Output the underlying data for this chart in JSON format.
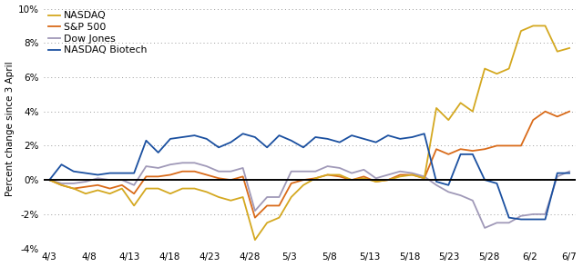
{
  "ylabel": "Percent change since 3 April",
  "ylim": [
    -4,
    10
  ],
  "yticks": [
    -4,
    -2,
    0,
    2,
    4,
    6,
    8,
    10
  ],
  "x_labels": [
    "4/3",
    "4/8",
    "4/13",
    "4/18",
    "4/23",
    "4/28",
    "5/3",
    "5/8",
    "5/13",
    "5/18",
    "5/23",
    "5/28",
    "6/2",
    "6/7"
  ],
  "background_color": "#ffffff",
  "legend_labels": [
    "NASDAQ",
    "S&P 500",
    "Dow Jones",
    "NASDAQ Biotech"
  ],
  "colors": {
    "NASDAQ": "#D4A820",
    "SP500": "#D96B1A",
    "DowJones": "#A099B8",
    "NASDAQBiotech": "#1B50A0"
  },
  "NASDAQ": [
    0.0,
    -0.3,
    -0.5,
    -0.8,
    -0.6,
    -0.8,
    -0.5,
    -1.5,
    -0.5,
    -0.5,
    -0.8,
    -0.5,
    -0.5,
    -0.7,
    -1.0,
    -1.2,
    -1.0,
    -3.5,
    -2.5,
    -2.2,
    -1.0,
    -0.3,
    0.1,
    0.3,
    0.3,
    0.0,
    0.1,
    -0.1,
    0.0,
    0.2,
    0.3,
    0.1,
    4.2,
    3.5,
    4.5,
    4.0,
    6.5,
    6.2,
    6.5,
    8.7,
    9.0,
    9.0,
    7.5,
    7.7
  ],
  "SP500": [
    0.0,
    -0.3,
    -0.5,
    -0.4,
    -0.3,
    -0.5,
    -0.3,
    -0.8,
    0.2,
    0.2,
    0.3,
    0.5,
    0.5,
    0.3,
    0.1,
    0.0,
    0.2,
    -2.2,
    -1.5,
    -1.5,
    -0.2,
    0.0,
    0.1,
    0.3,
    0.2,
    0.0,
    0.2,
    -0.1,
    0.0,
    0.3,
    0.3,
    0.1,
    1.8,
    1.5,
    1.8,
    1.7,
    1.8,
    2.0,
    2.0,
    2.0,
    3.5,
    4.0,
    3.7,
    4.0
  ],
  "DowJones": [
    0.0,
    -0.2,
    -0.2,
    -0.1,
    0.1,
    0.0,
    0.0,
    -0.3,
    0.8,
    0.7,
    0.9,
    1.0,
    1.0,
    0.8,
    0.5,
    0.5,
    0.7,
    -1.8,
    -1.0,
    -1.0,
    0.5,
    0.5,
    0.5,
    0.8,
    0.7,
    0.4,
    0.6,
    0.1,
    0.3,
    0.5,
    0.4,
    0.2,
    -0.3,
    -0.7,
    -0.9,
    -1.2,
    -2.8,
    -2.5,
    -2.5,
    -2.1,
    -2.0,
    -2.0,
    0.2,
    0.5
  ],
  "NASDAQBiotech": [
    0.0,
    0.9,
    0.5,
    0.4,
    0.3,
    0.4,
    0.4,
    0.4,
    2.3,
    1.6,
    2.4,
    2.5,
    2.6,
    2.4,
    1.9,
    2.2,
    2.7,
    2.5,
    1.9,
    2.6,
    2.3,
    1.9,
    2.5,
    2.4,
    2.2,
    2.6,
    2.4,
    2.2,
    2.6,
    2.4,
    2.5,
    2.7,
    -0.1,
    -0.3,
    1.5,
    1.5,
    0.0,
    -0.2,
    -2.2,
    -2.3,
    -2.3,
    -2.3,
    0.4,
    0.4
  ]
}
